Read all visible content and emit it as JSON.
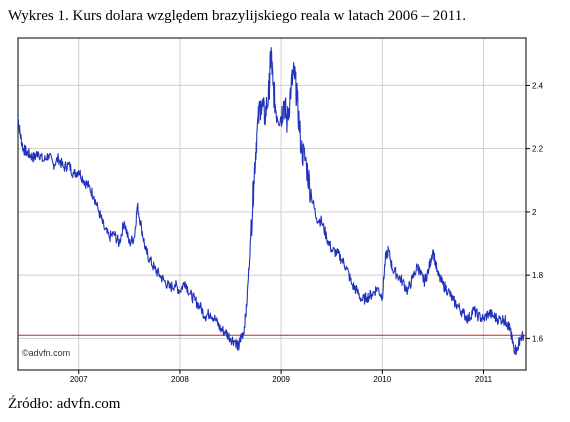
{
  "caption": "Wykres 1. Kurs dolara względem brazylijskiego reala w latach 2006 – 2011.",
  "source": "Źródło: advfn.com",
  "watermark": "©advfn.com",
  "chart_data": {
    "type": "line",
    "title": "Wykres 1. Kurs dolara względem brazylijskiego reala w latach 2006 – 2011.",
    "xlabel": "",
    "ylabel": "",
    "xlim": [
      2006.4,
      2011.42
    ],
    "ylim": [
      1.5,
      2.55
    ],
    "x_ticks": [
      {
        "value": 2007,
        "label": "2007"
      },
      {
        "value": 2008,
        "label": "2008"
      },
      {
        "value": 2009,
        "label": "2009"
      },
      {
        "value": 2010,
        "label": "2010"
      },
      {
        "value": 2011,
        "label": "2011"
      }
    ],
    "y_ticks": [
      {
        "value": 1.6,
        "label": "1.6"
      },
      {
        "value": 1.8,
        "label": "1.8"
      },
      {
        "value": 2,
        "label": "2"
      },
      {
        "value": 2.2,
        "label": "2.2"
      },
      {
        "value": 2.4,
        "label": "2.4"
      }
    ],
    "grid": true,
    "line_color": "#2233bb",
    "reference_line": {
      "value": 1.61,
      "color": "#cc2222"
    },
    "series": [
      {
        "x": [
          2006.4,
          2006.42,
          2006.45,
          2006.48,
          2006.52,
          2006.56,
          2006.6,
          2006.65,
          2006.7,
          2006.75,
          2006.8,
          2006.85,
          2006.9,
          2006.95,
          2007.0,
          2007.05,
          2007.1,
          2007.15,
          2007.2,
          2007.25,
          2007.3,
          2007.35,
          2007.4,
          2007.45,
          2007.5,
          2007.55,
          2007.58,
          2007.62,
          2007.66,
          2007.7,
          2007.75,
          2007.8,
          2007.85,
          2007.9,
          2007.95,
          2008.0,
          2008.05,
          2008.1,
          2008.15,
          2008.2,
          2008.25,
          2008.3,
          2008.35,
          2008.4,
          2008.45,
          2008.5,
          2008.55,
          2008.58,
          2008.6,
          2008.63,
          2008.66,
          2008.7,
          2008.73,
          2008.76,
          2008.8,
          2008.84,
          2008.88,
          2008.9,
          2008.92,
          2008.95,
          2009.0,
          2009.03,
          2009.06,
          2009.1,
          2009.13,
          2009.16,
          2009.2,
          2009.25,
          2009.3,
          2009.35,
          2009.4,
          2009.45,
          2009.5,
          2009.55,
          2009.6,
          2009.65,
          2009.7,
          2009.75,
          2009.8,
          2009.85,
          2009.9,
          2009.95,
          2010.0,
          2010.03,
          2010.06,
          2010.1,
          2010.15,
          2010.2,
          2010.25,
          2010.3,
          2010.35,
          2010.38,
          2010.42,
          2010.46,
          2010.5,
          2010.55,
          2010.6,
          2010.65,
          2010.7,
          2010.75,
          2010.8,
          2010.85,
          2010.9,
          2010.95,
          2011.0,
          2011.05,
          2011.1,
          2011.15,
          2011.2,
          2011.23,
          2011.26,
          2011.28,
          2011.3,
          2011.33,
          2011.36,
          2011.4
        ],
        "values": [
          2.3,
          2.25,
          2.2,
          2.19,
          2.18,
          2.17,
          2.19,
          2.16,
          2.18,
          2.15,
          2.17,
          2.14,
          2.15,
          2.12,
          2.13,
          2.1,
          2.08,
          2.05,
          2.0,
          1.95,
          1.92,
          1.93,
          1.9,
          1.97,
          1.9,
          1.92,
          2.02,
          1.95,
          1.88,
          1.85,
          1.82,
          1.8,
          1.78,
          1.76,
          1.77,
          1.75,
          1.78,
          1.74,
          1.72,
          1.7,
          1.67,
          1.68,
          1.66,
          1.63,
          1.62,
          1.6,
          1.59,
          1.57,
          1.6,
          1.62,
          1.7,
          1.92,
          2.1,
          2.25,
          2.35,
          2.3,
          2.38,
          2.51,
          2.4,
          2.32,
          2.3,
          2.35,
          2.28,
          2.4,
          2.44,
          2.35,
          2.2,
          2.15,
          2.05,
          1.98,
          1.97,
          1.92,
          1.88,
          1.87,
          1.85,
          1.82,
          1.77,
          1.75,
          1.72,
          1.73,
          1.74,
          1.76,
          1.73,
          1.85,
          1.88,
          1.82,
          1.8,
          1.78,
          1.75,
          1.79,
          1.83,
          1.8,
          1.78,
          1.82,
          1.88,
          1.8,
          1.77,
          1.75,
          1.72,
          1.7,
          1.68,
          1.66,
          1.69,
          1.67,
          1.66,
          1.68,
          1.67,
          1.66,
          1.66,
          1.65,
          1.63,
          1.6,
          1.57,
          1.56,
          1.6,
          1.61
        ]
      }
    ]
  }
}
